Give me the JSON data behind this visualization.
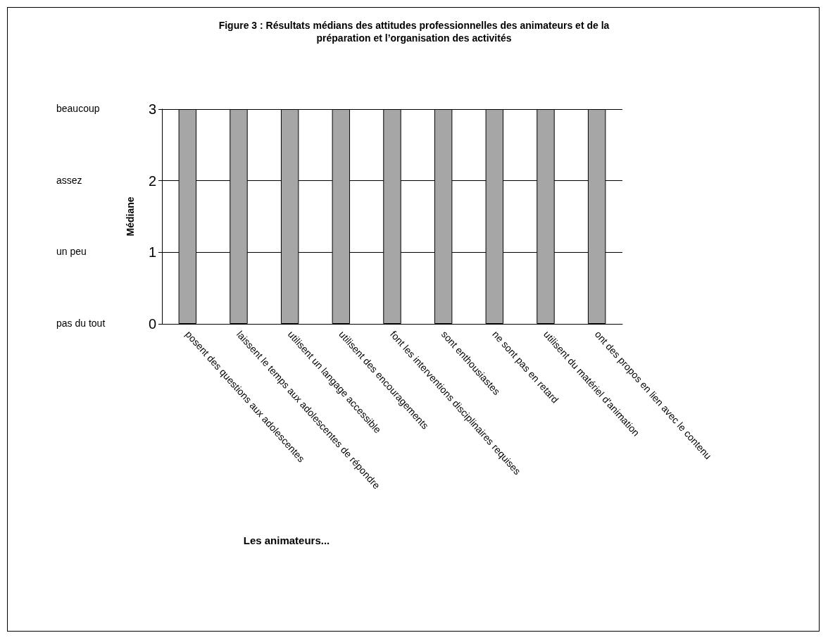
{
  "chart_data": {
    "type": "bar",
    "title": "Figure 3 : Résultats médians des attitudes professionnelles des animateurs et de la\npréparation et l’organisation des activités",
    "xlabel": "Les animateurs...",
    "ylabel": "Médiane",
    "categories": [
      "posent des questions aux adolescentes",
      "laissent le temps aux adolescentes de répondre",
      "utilisent un langage accessible",
      "utilisent des encouragements",
      "font les interventions disciplinaires requises",
      "sont enthousiastes",
      "ne sont pas en retard",
      "utilisent du matériel d'animation",
      "ont des propos en lien avec le contenu"
    ],
    "values": [
      3,
      3,
      3,
      3,
      3,
      3,
      3,
      3,
      3
    ],
    "color": "#a6a6a6",
    "ylim": [
      0,
      3
    ],
    "yticks": [
      0,
      1,
      2,
      3
    ],
    "grid": "y",
    "annotations": [
      "beaucoup",
      "assez",
      "un peu",
      "pas du tout"
    ]
  }
}
